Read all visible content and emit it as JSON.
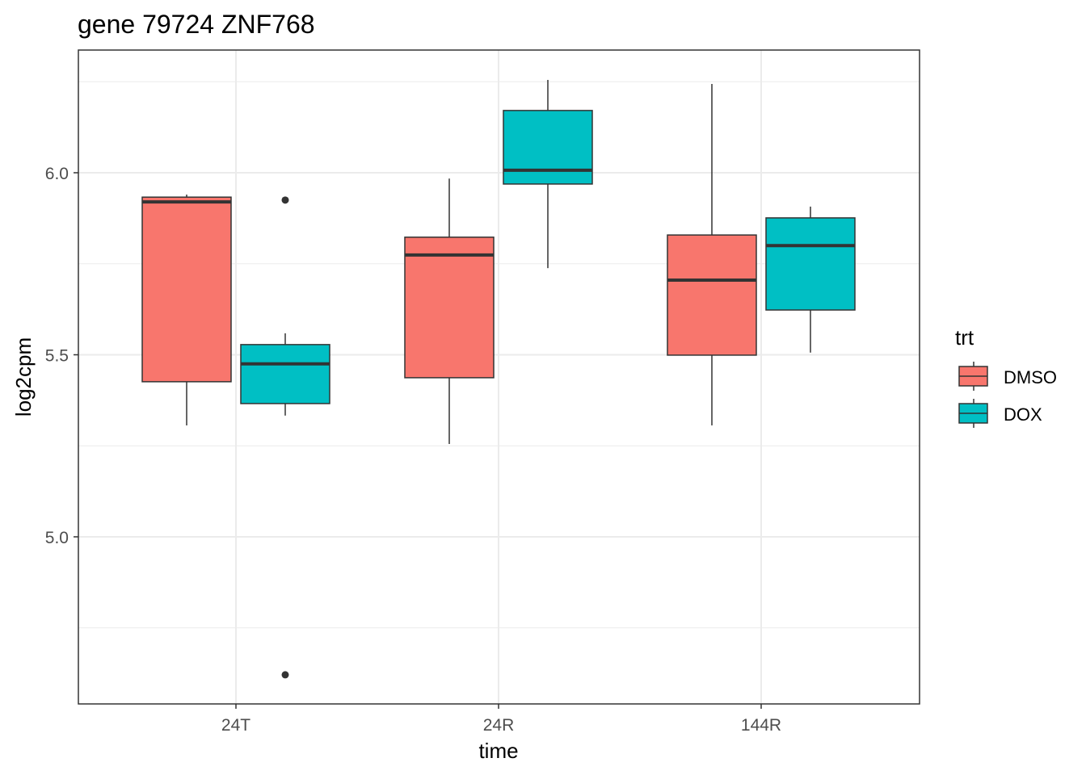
{
  "chart_data": {
    "type": "boxplot",
    "title": "gene 79724 ZNF768",
    "xlabel": "time",
    "ylabel": "log2cpm",
    "categories": [
      "24T",
      "24R",
      "144R"
    ],
    "ylim": [
      4.541,
      6.337
    ],
    "yticks": [
      5.0,
      5.5,
      6.0
    ],
    "ytick_labels": [
      "5.0",
      "5.5",
      "6.0"
    ],
    "grid": true,
    "legend": {
      "title": "trt",
      "position": "right",
      "entries": [
        {
          "label": "DMSO",
          "color": "#F8766D"
        },
        {
          "label": "DOX",
          "color": "#00BFC4"
        }
      ]
    },
    "series": [
      {
        "name": "DMSO",
        "color": "#F8766D",
        "boxes": [
          {
            "category": "24T",
            "whisker_low": 5.306,
            "q1": 5.426,
            "median": 5.92,
            "q3": 5.933,
            "whisker_high": 5.94,
            "outliers": []
          },
          {
            "category": "24R",
            "whisker_low": 5.255,
            "q1": 5.437,
            "median": 5.774,
            "q3": 5.823,
            "whisker_high": 5.984,
            "outliers": []
          },
          {
            "category": "144R",
            "whisker_low": 5.306,
            "q1": 5.499,
            "median": 5.705,
            "q3": 5.829,
            "whisker_high": 6.244,
            "outliers": []
          }
        ]
      },
      {
        "name": "DOX",
        "color": "#00BFC4",
        "boxes": [
          {
            "category": "24T",
            "whisker_low": 5.333,
            "q1": 5.366,
            "median": 5.475,
            "q3": 5.528,
            "whisker_high": 5.559,
            "outliers": [
              5.925,
              4.621
            ]
          },
          {
            "category": "24R",
            "whisker_low": 5.738,
            "q1": 5.969,
            "median": 6.007,
            "q3": 6.171,
            "whisker_high": 6.255,
            "outliers": []
          },
          {
            "category": "144R",
            "whisker_low": 5.506,
            "q1": 5.623,
            "median": 5.8,
            "q3": 5.876,
            "whisker_high": 5.907,
            "outliers": []
          }
        ]
      }
    ]
  }
}
